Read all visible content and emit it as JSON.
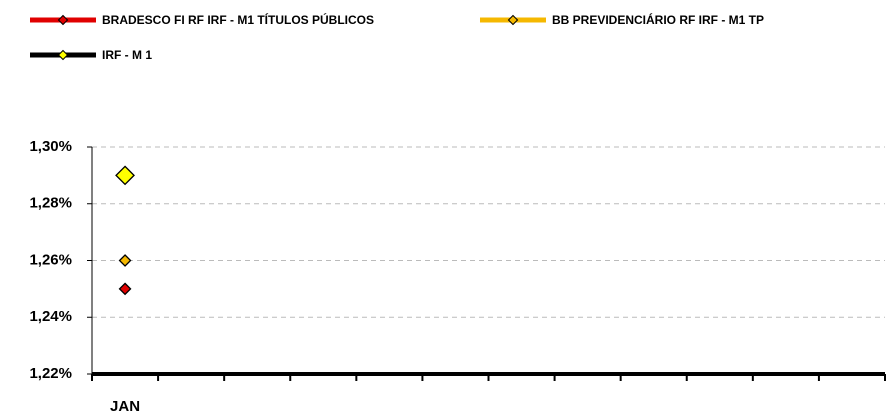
{
  "chart_data": {
    "type": "line",
    "categories": [
      "JAN",
      null,
      null,
      null,
      null,
      null,
      null,
      null,
      null,
      null,
      null,
      null
    ],
    "series": [
      {
        "name": "BRADESCO FI RF IRF - M1 TÍTULOS PÚBLICOS",
        "color": "#e00000",
        "values": [
          1.25,
          null,
          null,
          null,
          null,
          null,
          null,
          null,
          null,
          null,
          null,
          null
        ]
      },
      {
        "name": "BB PREVIDENCIÁRIO RF IRF - M1 TP",
        "color": "#f5b800",
        "values": [
          1.26,
          null,
          null,
          null,
          null,
          null,
          null,
          null,
          null,
          null,
          null,
          null
        ]
      },
      {
        "name": "IRF - M 1",
        "color": "#000000",
        "marker_color": "#ffff00",
        "values": [
          1.29,
          null,
          null,
          null,
          null,
          null,
          null,
          null,
          null,
          null,
          null,
          null
        ]
      }
    ],
    "ylim": [
      1.22,
      1.3
    ],
    "yticks": [
      {
        "value": 1.22,
        "label": "1,22%"
      },
      {
        "value": 1.24,
        "label": "1,24%"
      },
      {
        "value": 1.26,
        "label": "1,26%"
      },
      {
        "value": 1.28,
        "label": "1,28%"
      },
      {
        "value": 1.3,
        "label": "1,30%"
      }
    ],
    "grid": true
  }
}
